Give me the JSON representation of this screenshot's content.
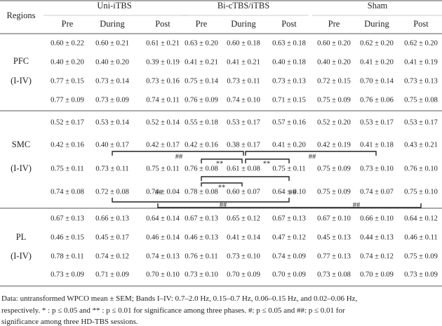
{
  "table": {
    "header": {
      "corner": "Regions",
      "groups": [
        "Uni-iTBS",
        "Bi-cTBS/iTBS",
        "Sham"
      ],
      "subheaders": [
        "Pre",
        "During",
        "Post",
        "Pre",
        "During",
        "Post",
        "Pre",
        "During",
        "Post"
      ]
    },
    "regions": [
      {
        "name": "PFC",
        "range": "(I-IV)",
        "rows": [
          [
            "0.60 ± 0.22",
            "0.60 ± 0.21",
            "0.61 ± 0.21",
            "0.63 ± 0.20",
            "0.60 ± 0.18",
            "0.63 ± 0.18",
            "0.60 ± 0.20",
            "0.62 ± 0.20",
            "0.62 ± 0.20"
          ],
          [
            "0.40 ± 0.20",
            "0.40 ± 0.20",
            "0.39 ± 0.19",
            "0.41 ± 0.21",
            "0.41 ± 0.21",
            "0.40 ± 0.18",
            "0.40 ± 0.20",
            "0.41 ± 0.20",
            "0.41 ± 0.19"
          ],
          [
            "0.77 ± 0.15",
            "0.73 ± 0.14",
            "0.73 ± 0.16",
            "0.75 ± 0.14",
            "0.73 ± 0.11",
            "0.73 ± 0.13",
            "0.72 ± 0.15",
            "0.70 ± 0.14",
            "0.73 ± 0.13"
          ],
          [
            "0.77 ± 0.09",
            "0.73 ± 0.09",
            "0.74 ± 0.11",
            "0.76 ± 0.09",
            "0.74 ± 0.10",
            "0.71 ± 0.15",
            "0.75 ± 0.09",
            "0.76 ± 0.06",
            "0.75 ± 0.08"
          ]
        ]
      },
      {
        "name": "SMC",
        "range": "(I-IV)",
        "rows": [
          [
            "0.52 ± 0.17",
            "0.53 ± 0.14",
            "0.52 ± 0.14",
            "0.55 ± 0.18",
            "0.53 ± 0.17",
            "0.57 ± 0.16",
            "0.52 ± 0.20",
            "0.53 ± 0.17",
            "0.53 ± 0.17"
          ],
          [
            "0.42 ± 0.16",
            "0.40 ± 0.17",
            "0.42 ± 0.17",
            "0.42 ± 0.16",
            "0.38 ± 0.17",
            "0.41 ± 0.20",
            "0.42 ± 0.19",
            "0.41 ± 0.18",
            "0.43 ± 0.21"
          ],
          [
            "0.75 ± 0.11",
            "0.73 ± 0.11",
            "0.75 ± 0.11",
            "0.76 ± 0.08",
            "0.61 ± 0.08",
            "0.75 ± 0.11",
            "0.75 ± 0.09",
            "0.73 ± 0.10",
            "0.76 ± 0.10"
          ],
          [
            "0.74 ± 0.08",
            "0.72 ± 0.08",
            "0.74 ± 0.04",
            "0.78 ± 0.08",
            "0.60 ± 0.07",
            "0.64 ± 0.10",
            "0.75 ± 0.09",
            "0.74 ± 0.07",
            "0.75 ± 0.10"
          ]
        ]
      },
      {
        "name": "PL",
        "range": "(I-IV)",
        "rows": [
          [
            "0.67 ± 0.13",
            "0.66 ± 0.13",
            "0.64 ± 0.14",
            "0.67 ± 0.13",
            "0.65 ± 0.12",
            "0.67 ± 0.13",
            "0.67 ± 0.10",
            "0.66 ± 0.10",
            "0.64 ± 0.12"
          ],
          [
            "0.46 ± 0.15",
            "0.45 ± 0.17",
            "0.46 ± 0.14",
            "0.46 ± 0.13",
            "0.41 ± 0.14",
            "0.47 ± 0.12",
            "0.45 ± 0.13",
            "0.44 ± 0.13",
            "0.46 ± 0.11"
          ],
          [
            "0.78 ± 0.11",
            "0.74 ± 0.12",
            "0.74 ± 0.13",
            "0.76 ± 0.11",
            "0.73 ± 0.10",
            "0.74 ± 0.09",
            "0.77 ± 0.13",
            "0.74 ± 0.12",
            "0.75 ± 0.09"
          ],
          [
            "0.73 ± 0.09",
            "0.71 ± 0.09",
            "0.70 ± 0.10",
            "0.73 ± 0.10",
            "0.70 ± 0.09",
            "0.70 ± 0.09",
            "0.73 ± 0.08",
            "0.70 ± 0.09",
            "0.73 ± 0.09"
          ]
        ]
      }
    ],
    "annotations": [
      "##",
      "##",
      "**",
      "**",
      "**",
      "##",
      "##",
      "##",
      "##"
    ]
  },
  "footnote": [
    "Data: untransformed WPCO mean ± SEM; Bands I–IV: 0.7–2.0 Hz, 0.15–0.7 Hz, 0.06–0.15 Hz, and 0.02–0.06 Hz,",
    "respectively. * : p ≤ 0.05 and ** : p ≤ 0.01 for significance among three phases. #: p ≤ 0.05 and ##: p ≤ 0.01 for",
    "significance among three HD-TBS sessions."
  ]
}
